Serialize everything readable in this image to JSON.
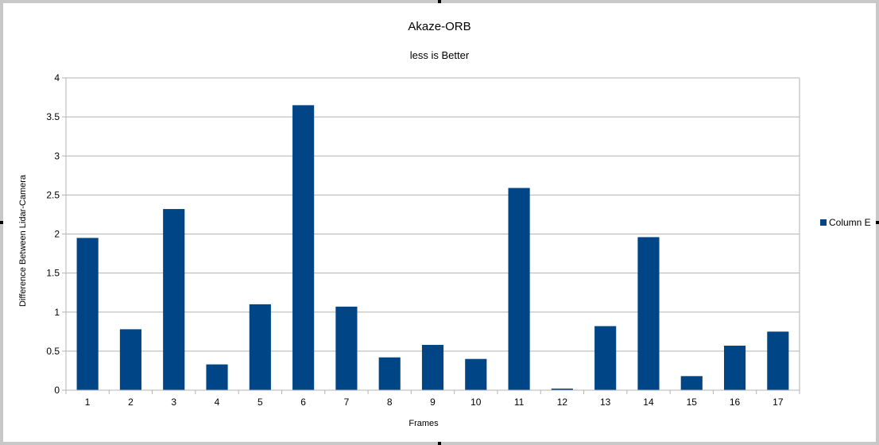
{
  "chart_data": {
    "type": "bar",
    "title": "Akaze-ORB",
    "subtitle": "less is Better",
    "xlabel": "Frames",
    "ylabel": "Difference Between Lidar-Camera",
    "ylim": [
      0,
      4
    ],
    "yticks": [
      "0",
      "0.5",
      "1",
      "1.5",
      "2",
      "2.5",
      "3",
      "3.5",
      "4"
    ],
    "categories": [
      "1",
      "2",
      "3",
      "4",
      "5",
      "6",
      "7",
      "8",
      "9",
      "10",
      "11",
      "12",
      "13",
      "14",
      "15",
      "16",
      "17"
    ],
    "series": [
      {
        "name": "Column E",
        "color": "#004586",
        "values": [
          1.95,
          0.78,
          2.32,
          0.33,
          1.1,
          3.65,
          1.07,
          0.42,
          0.58,
          0.4,
          2.59,
          0.02,
          0.82,
          1.96,
          0.18,
          0.57,
          0.75
        ]
      }
    ],
    "grid": true,
    "legend": "right"
  }
}
